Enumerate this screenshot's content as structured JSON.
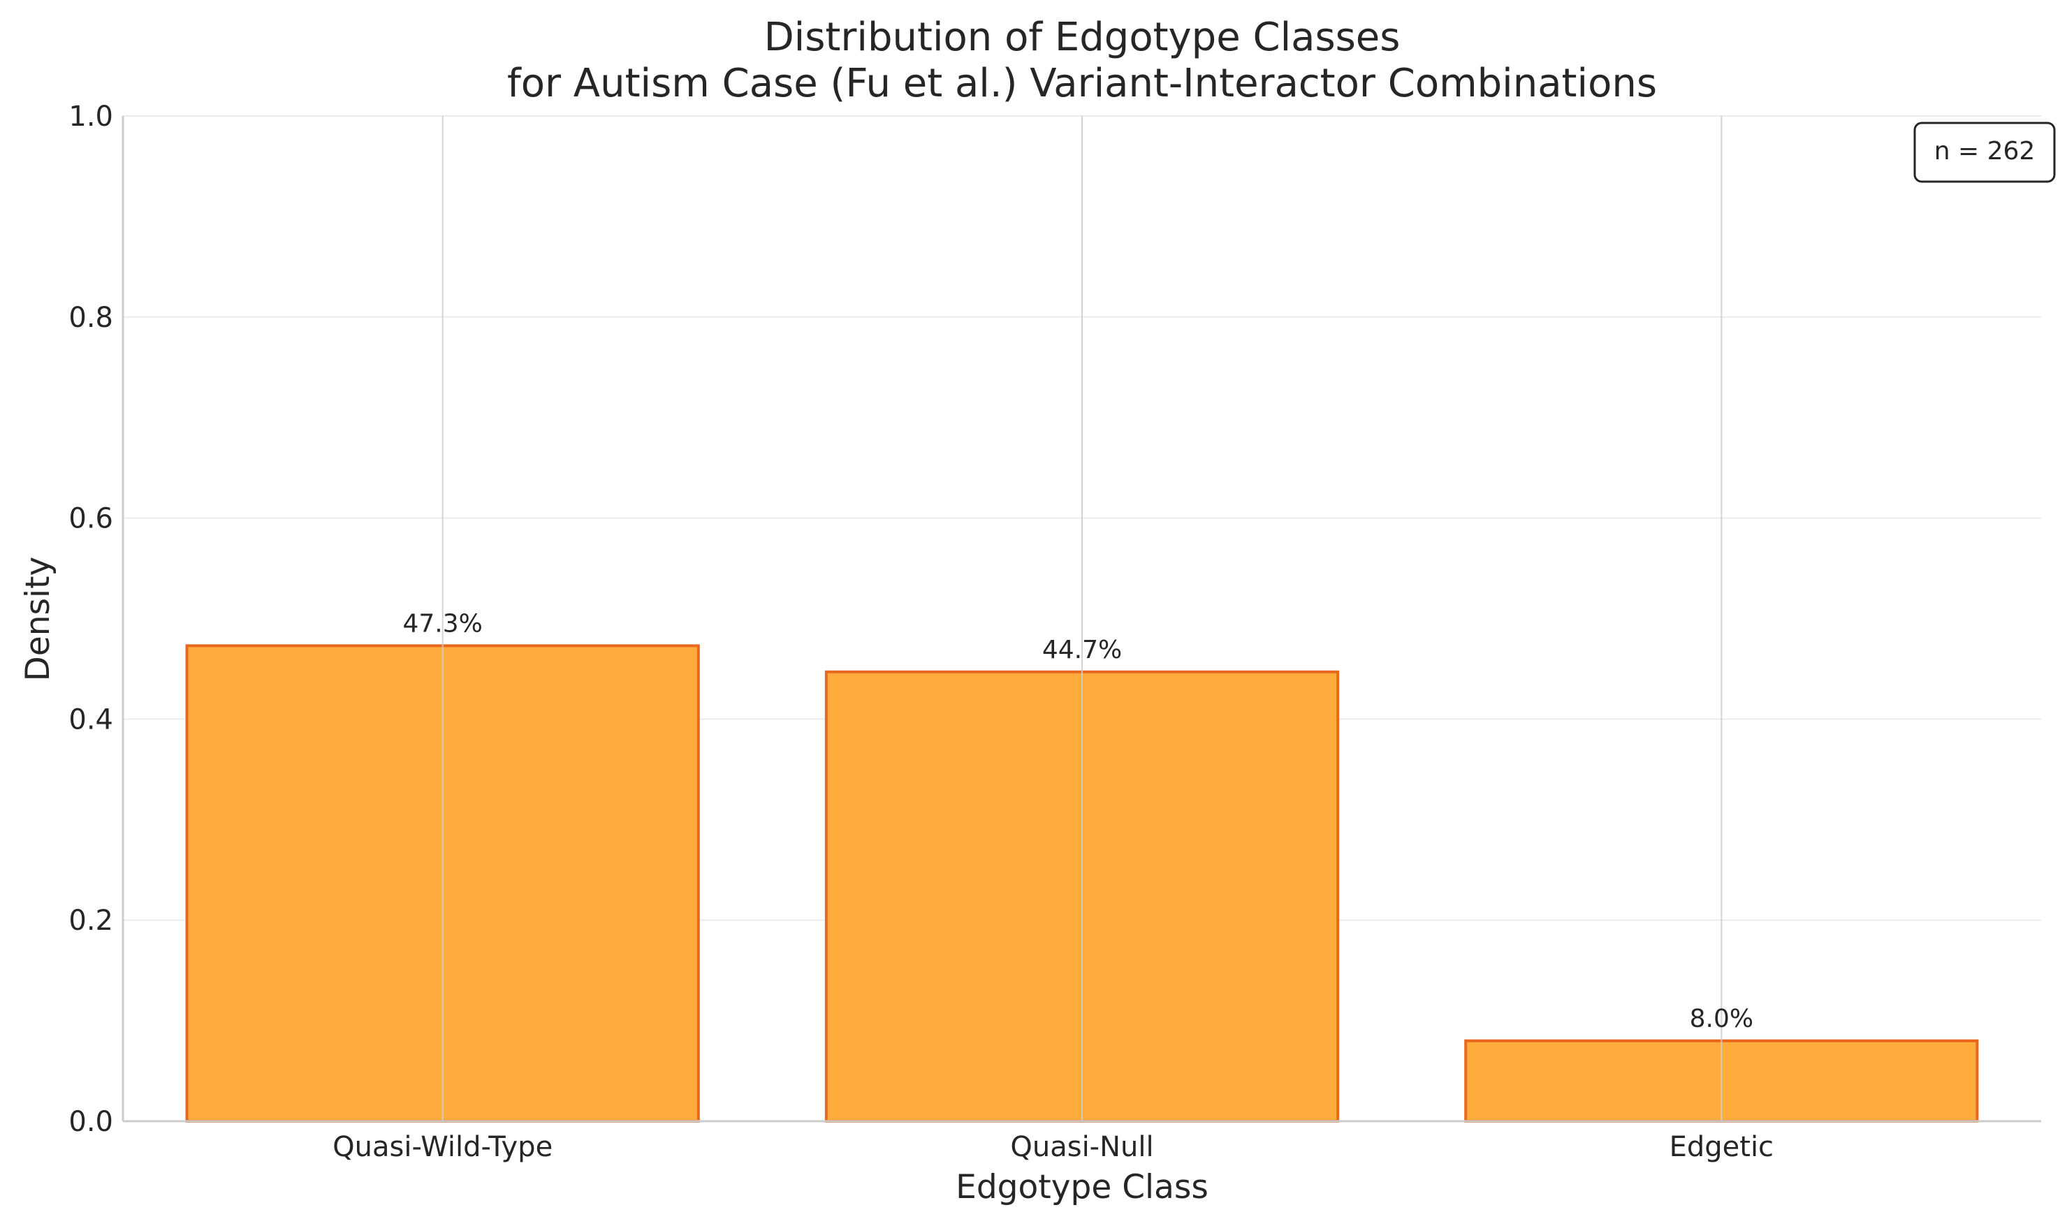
{
  "chart_data": {
    "type": "bar",
    "title": "Distribution of Edgotype Classes",
    "subtitle": "for Autism Case (Fu et al.) Variant-Interactor Combinations",
    "xlabel": "Edgotype Class",
    "ylabel": "Density",
    "categories": [
      "Quasi-Wild-Type",
      "Quasi-Null",
      "Edgetic"
    ],
    "values": [
      0.473,
      0.447,
      0.08
    ],
    "value_labels": [
      "47.3%",
      "44.7%",
      "8.0%"
    ],
    "ylim": [
      0,
      1.0
    ],
    "yticks": [
      0.0,
      0.2,
      0.4,
      0.6,
      0.8,
      1.0
    ],
    "ytick_labels": [
      "0.0",
      "0.2",
      "0.4",
      "0.6",
      "0.8",
      "1.0"
    ],
    "grid": true,
    "annotation": "n = 262",
    "annotation_position": "top-right",
    "colors": {
      "bar_fill": "#FFA833",
      "bar_edge": "#E8691E",
      "grid": "#EBEBEB",
      "vgrid": "#CCCCCC",
      "axis": "#CCCCCC"
    }
  }
}
